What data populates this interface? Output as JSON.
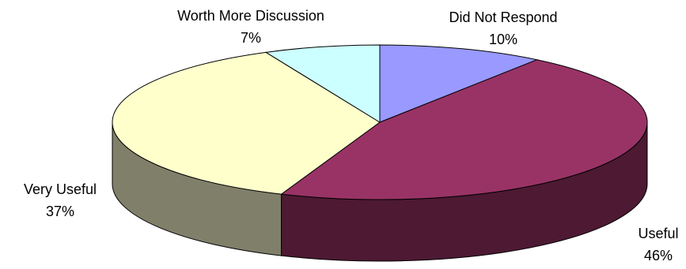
{
  "chart_data": {
    "type": "pie",
    "three_d": true,
    "slices": [
      {
        "label": "Did Not Respond",
        "value": 10,
        "value_label": "10%",
        "color": "#9999FF",
        "side_color": "#5A5AB0"
      },
      {
        "label": "Useful",
        "value": 46,
        "value_label": "46%",
        "color": "#993366",
        "side_color": "#4D1933"
      },
      {
        "label": "Very Useful",
        "value": 37,
        "value_label": "37%",
        "color": "#FFFFCC",
        "side_color": "#80806A"
      },
      {
        "label": "Worth More Discussion",
        "value": 7,
        "value_label": "7%",
        "color": "#CCFFFF",
        "side_color": "#668080"
      }
    ],
    "start_angle_deg": 90,
    "direction": "clockwise",
    "legend": "none",
    "outline_color": "#000000"
  }
}
